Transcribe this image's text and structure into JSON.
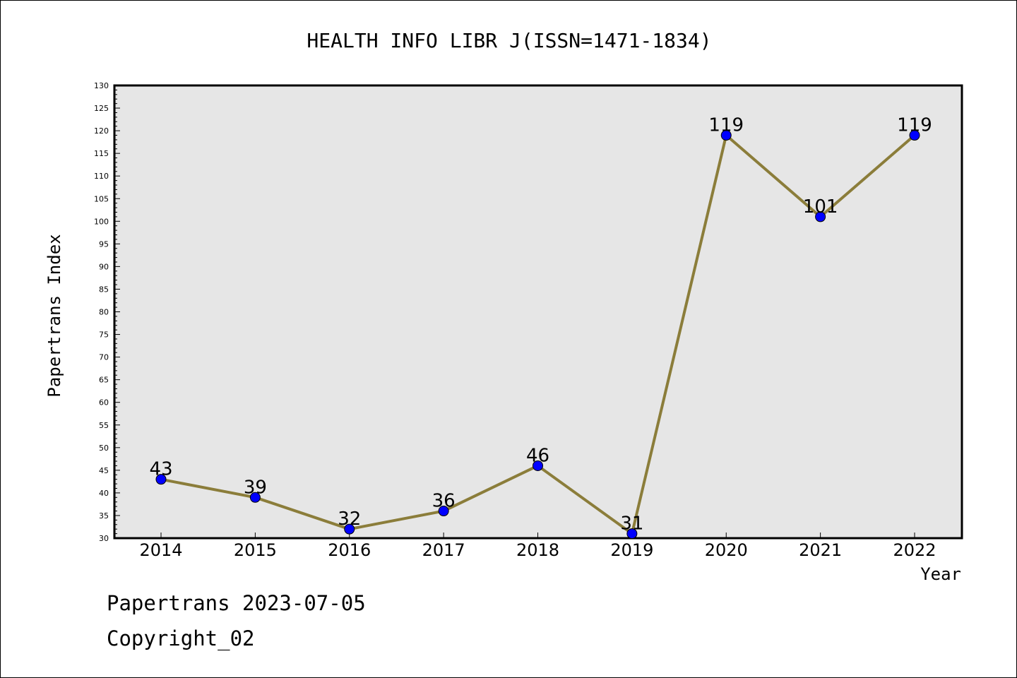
{
  "chart_data": {
    "type": "line",
    "title": "HEALTH INFO LIBR J(ISSN=1471-1834)",
    "xlabel": "Year",
    "ylabel": "Papertrans Index",
    "categories": [
      "2014",
      "2015",
      "2016",
      "2017",
      "2018",
      "2019",
      "2020",
      "2021",
      "2022"
    ],
    "series": [
      {
        "values": [
          43,
          39,
          32,
          36,
          46,
          31,
          119,
          101,
          119
        ]
      }
    ],
    "ylim": [
      30,
      130
    ],
    "ytick_step": 5,
    "grid": false,
    "colors": {
      "plot_background": "#e6e6e6",
      "line": "#8b7d3a",
      "marker": "#0000ff"
    }
  },
  "footer": {
    "line1": "Papertrans 2023-07-05",
    "line2": "Copyright_02"
  }
}
